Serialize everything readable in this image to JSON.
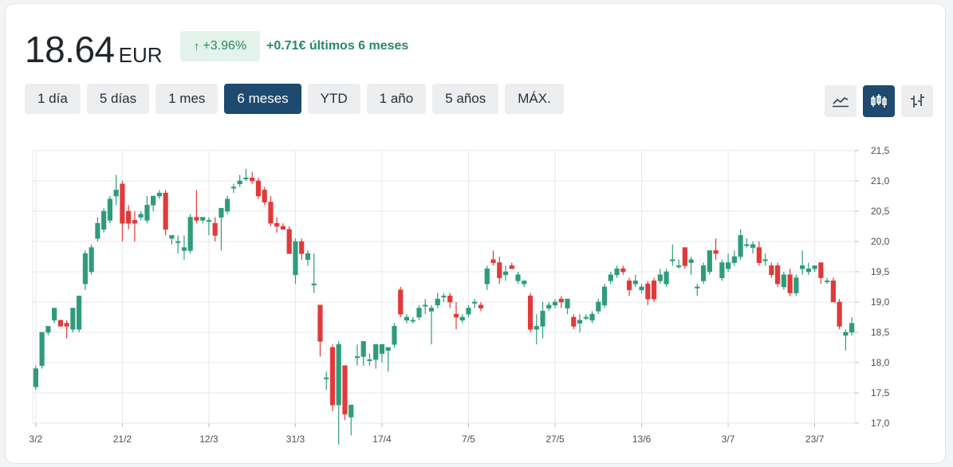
{
  "header": {
    "price": "18.64",
    "currency": "EUR",
    "change_pct": "+3.96%",
    "change_text": "+0.71€ últimos 6 meses"
  },
  "ranges": [
    "1 día",
    "5 días",
    "1 mes",
    "6 meses",
    "YTD",
    "1 año",
    "5 años",
    "MÁX."
  ],
  "active_range": "6 meses",
  "chart_types": [
    {
      "icon": "line-chart-icon",
      "active": false
    },
    {
      "icon": "candlestick-chart-icon",
      "active": true
    },
    {
      "icon": "ohlc-chart-icon",
      "active": false
    }
  ],
  "colors": {
    "up": "#2e9c7c",
    "down": "#e03a3a",
    "accent": "#1d4a6e",
    "positive_text": "#2a8a62"
  },
  "chart_data": {
    "type": "candlestick",
    "ylim": [
      17.0,
      21.5
    ],
    "y_ticks": [
      "21,5",
      "21,0",
      "20,5",
      "20,0",
      "19,5",
      "19,0",
      "18,5",
      "18,0",
      "17,5",
      "17,0"
    ],
    "x_ticks": [
      {
        "label": "3/2",
        "index": 0
      },
      {
        "label": "21/2",
        "index": 14
      },
      {
        "label": "12/3",
        "index": 28
      },
      {
        "label": "31/3",
        "index": 42
      },
      {
        "label": "17/4",
        "index": 56
      },
      {
        "label": "7/5",
        "index": 70
      },
      {
        "label": "27/5",
        "index": 84
      },
      {
        "label": "13/6",
        "index": 98
      },
      {
        "label": "3/7",
        "index": 112
      },
      {
        "label": "23/7",
        "index": 126
      }
    ],
    "candles": [
      [
        17.6,
        17.55,
        17.95,
        17.9
      ],
      [
        17.95,
        17.9,
        18.5,
        18.5
      ],
      [
        18.5,
        18.45,
        18.6,
        18.6
      ],
      [
        18.7,
        18.65,
        18.9,
        18.9
      ],
      [
        18.7,
        18.6,
        18.7,
        18.6
      ],
      [
        18.65,
        18.4,
        18.7,
        18.6
      ],
      [
        18.55,
        18.5,
        18.9,
        18.9
      ],
      [
        18.55,
        18.5,
        19.1,
        19.1
      ],
      [
        19.3,
        19.2,
        19.85,
        19.8
      ],
      [
        19.5,
        19.45,
        19.95,
        19.9
      ],
      [
        20.05,
        20.0,
        20.4,
        20.3
      ],
      [
        20.2,
        20.15,
        20.55,
        20.5
      ],
      [
        20.35,
        20.3,
        20.75,
        20.7
      ],
      [
        20.75,
        20.6,
        21.1,
        20.85
      ],
      [
        20.95,
        20.0,
        21.0,
        20.3
      ],
      [
        20.5,
        20.2,
        20.6,
        20.3
      ],
      [
        20.35,
        20.0,
        20.5,
        20.3
      ],
      [
        20.4,
        20.35,
        20.5,
        20.45
      ],
      [
        20.35,
        20.3,
        20.75,
        20.6
      ],
      [
        20.6,
        20.5,
        20.75,
        20.75
      ],
      [
        20.75,
        20.7,
        20.85,
        20.8
      ],
      [
        20.8,
        20.1,
        20.85,
        20.2
      ],
      [
        20.05,
        19.95,
        20.1,
        20.1
      ],
      [
        20.0,
        19.8,
        20.1,
        20.0
      ],
      [
        19.85,
        19.7,
        20.1,
        19.9
      ],
      [
        19.85,
        19.8,
        20.45,
        20.4
      ],
      [
        20.4,
        20.3,
        20.85,
        20.35
      ],
      [
        20.35,
        20.3,
        20.4,
        20.4
      ],
      [
        20.35,
        20.1,
        20.4,
        20.35
      ],
      [
        20.3,
        20.0,
        20.4,
        20.1
      ],
      [
        20.4,
        19.85,
        20.55,
        20.55
      ],
      [
        20.5,
        20.45,
        20.75,
        20.7
      ],
      [
        20.9,
        20.8,
        20.95,
        20.9
      ],
      [
        20.95,
        20.9,
        21.1,
        21.0
      ],
      [
        21.05,
        21.0,
        21.2,
        21.05
      ],
      [
        21.05,
        20.95,
        21.15,
        21.0
      ],
      [
        21.0,
        20.7,
        21.05,
        20.75
      ],
      [
        20.85,
        20.6,
        20.9,
        20.65
      ],
      [
        20.65,
        20.25,
        20.75,
        20.3
      ],
      [
        20.3,
        20.15,
        20.4,
        20.25
      ],
      [
        20.25,
        20.2,
        20.3,
        20.2
      ],
      [
        20.2,
        19.8,
        20.25,
        19.8
      ],
      [
        19.45,
        19.3,
        20.05,
        20.0
      ],
      [
        20.0,
        19.7,
        20.05,
        19.8
      ],
      [
        19.7,
        19.6,
        19.85,
        19.8
      ],
      [
        19.3,
        19.15,
        19.8,
        19.3
      ],
      [
        18.95,
        18.1,
        18.95,
        18.35
      ],
      [
        17.75,
        17.55,
        17.85,
        17.75
      ],
      [
        18.25,
        17.2,
        18.3,
        17.3
      ],
      [
        17.3,
        16.65,
        18.35,
        18.3
      ],
      [
        17.95,
        17.05,
        17.95,
        17.15
      ],
      [
        17.1,
        16.8,
        17.3,
        17.3
      ],
      [
        18.1,
        17.95,
        18.3,
        18.1
      ],
      [
        18.1,
        17.95,
        18.35,
        18.35
      ],
      [
        18.05,
        17.95,
        18.15,
        18.05
      ],
      [
        18.05,
        17.9,
        18.3,
        18.3
      ],
      [
        18.15,
        18.0,
        18.3,
        18.3
      ],
      [
        18.2,
        17.85,
        18.25,
        18.25
      ],
      [
        18.3,
        18.25,
        18.65,
        18.6
      ],
      [
        19.2,
        18.75,
        19.25,
        18.8
      ],
      [
        18.7,
        18.65,
        18.8,
        18.75
      ],
      [
        18.7,
        18.65,
        18.75,
        18.7
      ],
      [
        18.75,
        18.7,
        18.95,
        18.9
      ],
      [
        18.95,
        18.8,
        19.05,
        18.95
      ],
      [
        18.85,
        18.3,
        18.95,
        18.9
      ],
      [
        18.95,
        18.9,
        19.15,
        19.05
      ],
      [
        19.1,
        19.0,
        19.15,
        19.1
      ],
      [
        19.1,
        18.9,
        19.15,
        19.0
      ],
      [
        18.8,
        18.55,
        19.0,
        18.75
      ],
      [
        18.7,
        18.65,
        18.8,
        18.75
      ],
      [
        18.8,
        18.75,
        18.95,
        18.9
      ],
      [
        19.0,
        18.9,
        19.05,
        19.0
      ],
      [
        18.95,
        18.85,
        19.0,
        18.9
      ],
      [
        19.3,
        19.2,
        19.6,
        19.55
      ],
      [
        19.7,
        19.6,
        19.85,
        19.65
      ],
      [
        19.65,
        19.3,
        19.75,
        19.4
      ],
      [
        19.45,
        19.35,
        19.6,
        19.5
      ],
      [
        19.6,
        19.55,
        19.65,
        19.55
      ],
      [
        19.35,
        19.3,
        19.5,
        19.45
      ],
      [
        19.3,
        19.25,
        19.35,
        19.35
      ],
      [
        19.1,
        18.5,
        19.15,
        18.55
      ],
      [
        18.55,
        18.3,
        18.8,
        18.6
      ],
      [
        18.6,
        18.4,
        19.0,
        18.85
      ],
      [
        18.9,
        18.85,
        19.0,
        18.95
      ],
      [
        18.95,
        18.9,
        19.05,
        19.0
      ],
      [
        19.05,
        18.9,
        19.1,
        19.0
      ],
      [
        18.9,
        18.8,
        19.05,
        19.05
      ],
      [
        18.75,
        18.55,
        18.8,
        18.6
      ],
      [
        18.65,
        18.5,
        18.8,
        18.7
      ],
      [
        18.75,
        18.7,
        18.8,
        18.75
      ],
      [
        18.7,
        18.65,
        18.85,
        18.8
      ],
      [
        18.85,
        18.8,
        19.05,
        19.0
      ],
      [
        18.95,
        18.9,
        19.3,
        19.25
      ],
      [
        19.35,
        19.3,
        19.5,
        19.45
      ],
      [
        19.45,
        19.4,
        19.6,
        19.55
      ],
      [
        19.55,
        19.45,
        19.6,
        19.5
      ],
      [
        19.35,
        19.1,
        19.4,
        19.2
      ],
      [
        19.3,
        19.25,
        19.45,
        19.35
      ],
      [
        19.2,
        19.15,
        19.3,
        19.25
      ],
      [
        19.3,
        18.95,
        19.35,
        19.05
      ],
      [
        19.35,
        19.0,
        19.4,
        19.05
      ],
      [
        19.35,
        19.3,
        19.55,
        19.45
      ],
      [
        19.3,
        19.25,
        19.55,
        19.5
      ],
      [
        19.7,
        19.6,
        19.95,
        19.7
      ],
      [
        19.6,
        19.55,
        19.7,
        19.6
      ],
      [
        19.9,
        19.55,
        19.9,
        19.6
      ],
      [
        19.65,
        19.45,
        19.75,
        19.7
      ],
      [
        19.25,
        19.1,
        19.3,
        19.25
      ],
      [
        19.35,
        19.3,
        19.65,
        19.6
      ],
      [
        19.5,
        19.45,
        19.85,
        19.85
      ],
      [
        19.85,
        19.7,
        20.05,
        19.8
      ],
      [
        19.4,
        19.35,
        19.7,
        19.65
      ],
      [
        19.55,
        19.5,
        19.8,
        19.65
      ],
      [
        19.65,
        19.6,
        19.85,
        19.75
      ],
      [
        19.75,
        19.7,
        20.2,
        20.1
      ],
      [
        19.95,
        19.9,
        20.05,
        19.95
      ],
      [
        19.9,
        19.8,
        20.0,
        19.95
      ],
      [
        19.9,
        19.6,
        20.0,
        19.65
      ],
      [
        19.7,
        19.6,
        19.8,
        19.7
      ],
      [
        19.6,
        19.4,
        19.65,
        19.45
      ],
      [
        19.6,
        19.25,
        19.65,
        19.3
      ],
      [
        19.25,
        19.2,
        19.5,
        19.45
      ],
      [
        19.45,
        19.1,
        19.55,
        19.15
      ],
      [
        19.15,
        19.1,
        19.45,
        19.4
      ],
      [
        19.55,
        19.45,
        19.85,
        19.6
      ],
      [
        19.5,
        19.45,
        19.65,
        19.55
      ],
      [
        19.55,
        19.5,
        19.6,
        19.6
      ],
      [
        19.65,
        19.3,
        19.65,
        19.4
      ],
      [
        19.35,
        19.3,
        19.4,
        19.35
      ],
      [
        19.35,
        19.0,
        19.4,
        19.0
      ],
      [
        19.0,
        18.55,
        19.05,
        18.6
      ],
      [
        18.45,
        18.2,
        18.55,
        18.5
      ],
      [
        18.5,
        18.45,
        18.75,
        18.65
      ]
    ]
  }
}
